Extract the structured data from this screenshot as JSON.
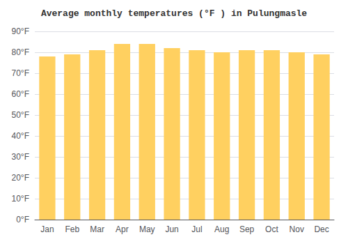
{
  "chart_data": {
    "type": "bar",
    "title": "Average monthly temperatures (°F ) in Pulungmasle",
    "categories": [
      "Jan",
      "Feb",
      "Mar",
      "Apr",
      "May",
      "Jun",
      "Jul",
      "Aug",
      "Sep",
      "Oct",
      "Nov",
      "Dec"
    ],
    "values": [
      78,
      79,
      81,
      84,
      84,
      82,
      81,
      80,
      81,
      81,
      80,
      79
    ],
    "color": "#FFD060",
    "ylim": [
      0,
      90
    ],
    "yticks": [
      {
        "value": 0,
        "label": "0°F"
      },
      {
        "value": 10,
        "label": "10°F"
      },
      {
        "value": 20,
        "label": "20°F"
      },
      {
        "value": 30,
        "label": "30°F"
      },
      {
        "value": 40,
        "label": "40°F"
      },
      {
        "value": 50,
        "label": "50°F"
      },
      {
        "value": 60,
        "label": "60°F"
      },
      {
        "value": 70,
        "label": "70°F"
      },
      {
        "value": 80,
        "label": "80°F"
      },
      {
        "value": 90,
        "label": "90°F"
      }
    ],
    "grid": true
  }
}
